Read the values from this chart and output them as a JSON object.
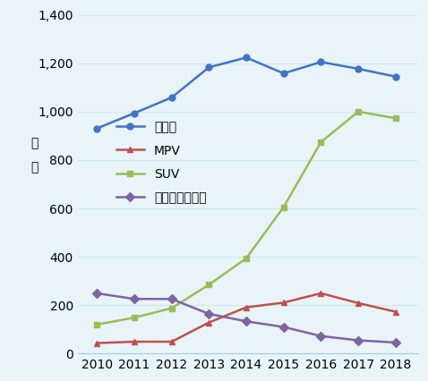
{
  "years": [
    2010,
    2011,
    2012,
    2013,
    2014,
    2015,
    2016,
    2017,
    2018
  ],
  "sedan": [
    930.4958,
    993.6801,
    1058.1267,
    1183.2048,
    1223.4583,
    1158.0336,
    1205.1611,
    1176.9569,
    1144.8506
  ],
  "mpv": [
    43.3042,
    49.1315,
    49.0482,
    128.4018,
    191.164,
    210.5014,
    249.3269,
    208.5849,
    172.8157
  ],
  "suv": [
    119.8085,
    148.727,
    187.5053,
    284.5113,
    393.8115,
    605.5878,
    874.1251,
    1000.1362,
    972.4652
  ],
  "cross": [
    249.1704,
    225.8436,
    225.626,
    164.1065,
    133.2101,
    109.9172,
    72.4536,
    54.7018,
    45.819
  ],
  "sedan_color": "#4472c4",
  "mpv_color": "#c0504d",
  "suv_color": "#9bbb59",
  "cross_color": "#8064a2",
  "sedan_label": "セダン",
  "mpv_label": "MPV",
  "suv_label": "SUV",
  "cross_label": "クロスオーバー",
  "ylabel_line1": "万",
  "ylabel_line2": "台",
  "ylim": [
    0,
    1400
  ],
  "yticks": [
    0,
    200,
    400,
    600,
    800,
    1000,
    1200,
    1400
  ],
  "background_color": "#e8f4f8",
  "grid_color": "#d0e8f0",
  "spine_bottom_color": "#b0c8d8"
}
